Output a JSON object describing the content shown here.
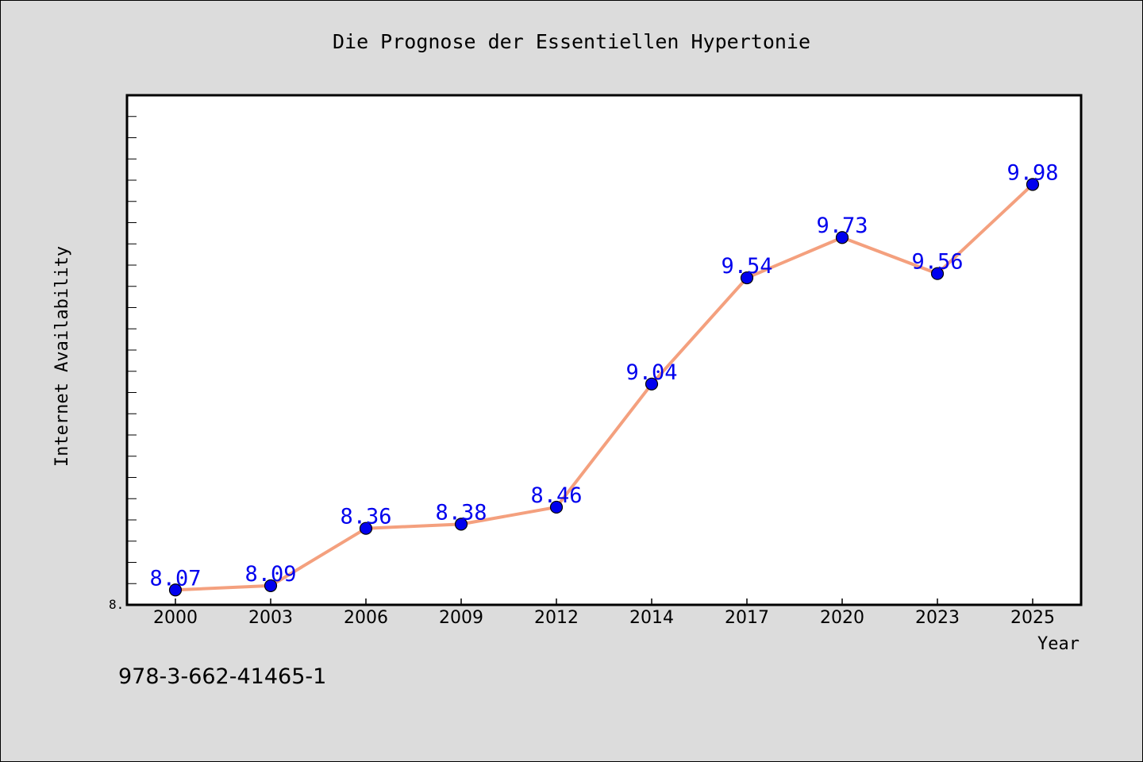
{
  "chart_data": {
    "type": "line",
    "title": "Die Prognose der Essentiellen Hypertonie",
    "xlabel": "Year",
    "ylabel": "Internet Availability",
    "categories": [
      "2000",
      "2003",
      "2006",
      "2009",
      "2012",
      "2014",
      "2017",
      "2020",
      "2023",
      "2025"
    ],
    "values": [
      8.07,
      8.09,
      8.36,
      8.38,
      8.46,
      9.04,
      9.54,
      9.73,
      9.56,
      9.98
    ],
    "data_labels": [
      "8.07",
      "8.09",
      "8.36",
      "8.38",
      "8.46",
      "9.04",
      "9.54",
      "9.73",
      "9.56",
      "9.98"
    ],
    "ylim": [
      8.0,
      10.4
    ],
    "ytick_label": "8.",
    "legend": "none",
    "grid": false,
    "line_color": "#f4a07e",
    "marker_color": "#0000ee",
    "label_color": "#0000ee"
  },
  "footer": {
    "isbn": "978-3-662-41465-1"
  }
}
